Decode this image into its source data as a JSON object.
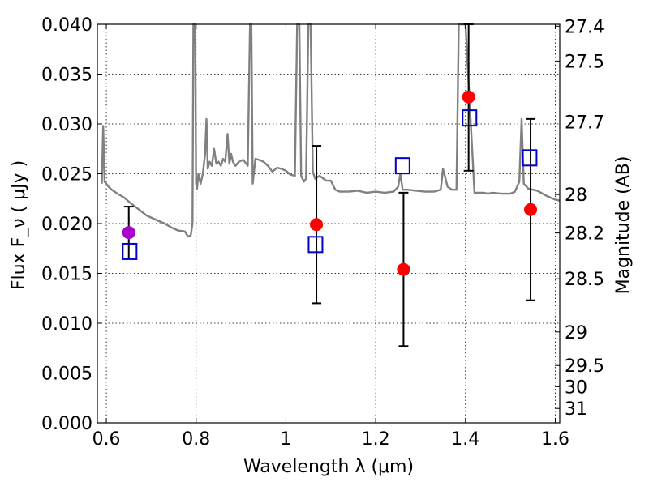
{
  "chart_data": {
    "type": "scatter",
    "title": "",
    "xlabel": "Wavelength  λ (μm)",
    "ylabel": "Flux  F_ν  ( μJy )",
    "ylabel_right": "Magnitude (AB)",
    "xlim": [
      0.58,
      1.61
    ],
    "ylim": [
      0.0,
      0.04
    ],
    "grid": true,
    "x_ticks": [
      {
        "value": 0.6,
        "label": "0.6"
      },
      {
        "value": 0.8,
        "label": "0.8"
      },
      {
        "value": 1.0,
        "label": "1"
      },
      {
        "value": 1.2,
        "label": "1.2"
      },
      {
        "value": 1.4,
        "label": "1.4"
      },
      {
        "value": 1.6,
        "label": "1.6"
      }
    ],
    "y_ticks": [
      {
        "value": 0.0,
        "label": "0.000"
      },
      {
        "value": 0.005,
        "label": "0.005"
      },
      {
        "value": 0.01,
        "label": "0.010"
      },
      {
        "value": 0.015,
        "label": "0.015"
      },
      {
        "value": 0.02,
        "label": "0.020"
      },
      {
        "value": 0.025,
        "label": "0.025"
      },
      {
        "value": 0.03,
        "label": "0.030"
      },
      {
        "value": 0.035,
        "label": "0.035"
      },
      {
        "value": 0.04,
        "label": "0.040"
      }
    ],
    "y2_ticks": [
      {
        "value": 27.4,
        "label": "27.4"
      },
      {
        "value": 27.5,
        "label": "27.5"
      },
      {
        "value": 27.7,
        "label": "27.7"
      },
      {
        "value": 28.0,
        "label": "28"
      },
      {
        "value": 28.2,
        "label": "28.2"
      },
      {
        "value": 28.5,
        "label": "28.5"
      },
      {
        "value": 29.0,
        "label": "29"
      },
      {
        "value": 29.5,
        "label": "29.5"
      },
      {
        "value": 30.0,
        "label": "30"
      },
      {
        "value": 31.0,
        "label": "31"
      }
    ],
    "series": [
      {
        "kind": "line",
        "color": "#808080",
        "x": [
          0.59,
          0.593,
          0.596,
          0.6,
          0.605,
          0.612,
          0.625,
          0.64,
          0.65,
          0.67,
          0.69,
          0.71,
          0.73,
          0.745,
          0.76,
          0.775,
          0.782,
          0.788,
          0.792,
          0.794,
          0.796,
          0.798,
          0.8,
          0.802,
          0.805,
          0.81,
          0.815,
          0.82,
          0.823,
          0.826,
          0.83,
          0.835,
          0.84,
          0.845,
          0.85,
          0.855,
          0.86,
          0.865,
          0.87,
          0.874,
          0.878,
          0.882,
          0.888,
          0.895,
          0.905,
          0.915,
          0.92,
          0.923,
          0.926,
          0.932,
          0.94,
          0.95,
          0.96,
          0.97,
          0.98,
          0.99,
          1.0,
          1.01,
          1.02,
          1.025,
          1.03,
          1.034,
          1.04,
          1.045,
          1.05,
          1.055,
          1.06,
          1.065,
          1.075,
          1.09,
          1.1,
          1.11,
          1.12,
          1.14,
          1.16,
          1.18,
          1.2,
          1.22,
          1.24,
          1.25,
          1.255,
          1.26,
          1.27,
          1.29,
          1.31,
          1.33,
          1.345,
          1.35,
          1.36,
          1.37,
          1.38,
          1.385,
          1.39,
          1.4,
          1.42,
          1.44,
          1.45,
          1.46,
          1.48,
          1.5,
          1.51,
          1.52,
          1.525,
          1.53,
          1.54,
          1.56,
          1.58,
          1.6,
          1.61
        ],
        "y": [
          0.024,
          0.0298,
          0.0242,
          0.024,
          0.0237,
          0.0234,
          0.023,
          0.0226,
          0.0222,
          0.0215,
          0.0208,
          0.0204,
          0.02,
          0.0196,
          0.0193,
          0.0192,
          0.0187,
          0.0188,
          0.02,
          0.04,
          0.04,
          0.04,
          0.024,
          0.0235,
          0.025,
          0.024,
          0.025,
          0.027,
          0.0305,
          0.0255,
          0.0262,
          0.0258,
          0.0275,
          0.026,
          0.0262,
          0.0258,
          0.0265,
          0.0262,
          0.029,
          0.026,
          0.027,
          0.0262,
          0.0258,
          0.0262,
          0.0264,
          0.0258,
          0.04,
          0.04,
          0.024,
          0.0265,
          0.0264,
          0.0262,
          0.0258,
          0.0252,
          0.0256,
          0.0255,
          0.0253,
          0.0249,
          0.0248,
          0.04,
          0.04,
          0.0248,
          0.0242,
          0.0245,
          0.04,
          0.04,
          0.0252,
          0.0245,
          0.0248,
          0.0243,
          0.0243,
          0.0234,
          0.0232,
          0.0232,
          0.0233,
          0.0231,
          0.0232,
          0.0231,
          0.0232,
          0.0237,
          0.025,
          0.0234,
          0.0234,
          0.0233,
          0.0232,
          0.0232,
          0.0234,
          0.0255,
          0.0237,
          0.0234,
          0.0234,
          0.04,
          0.04,
          0.04,
          0.0231,
          0.0231,
          0.023,
          0.0231,
          0.023,
          0.023,
          0.0232,
          0.0242,
          0.0305,
          0.024,
          0.0235,
          0.0233,
          0.0228,
          0.0224,
          0.0223
        ]
      },
      {
        "kind": "points",
        "marker": "circle",
        "color": "#ff0000",
        "points": [
          {
            "x": 1.068,
            "y": 0.0199,
            "err_low": 0.0079,
            "err_high": 0.0079
          },
          {
            "x": 1.262,
            "y": 0.0154,
            "err_low": 0.0077,
            "err_high": 0.0077
          },
          {
            "x": 1.407,
            "y": 0.0327,
            "err_low": 0.0074,
            "err_high": 0.0073
          },
          {
            "x": 1.545,
            "y": 0.0214,
            "err_low": 0.0091,
            "err_high": 0.0091
          }
        ]
      },
      {
        "kind": "points",
        "marker": "circle",
        "color": "#aa00cc",
        "points": [
          {
            "x": 0.65,
            "y": 0.0191,
            "err_low": 0.0026,
            "err_high": 0.0026
          }
        ]
      },
      {
        "kind": "points",
        "marker": "square-open",
        "color": "#0000cc",
        "points": [
          {
            "x": 0.652,
            "y": 0.0172
          },
          {
            "x": 1.066,
            "y": 0.0179
          },
          {
            "x": 1.26,
            "y": 0.0258
          },
          {
            "x": 1.409,
            "y": 0.0306
          },
          {
            "x": 1.543,
            "y": 0.0266
          }
        ]
      }
    ]
  }
}
